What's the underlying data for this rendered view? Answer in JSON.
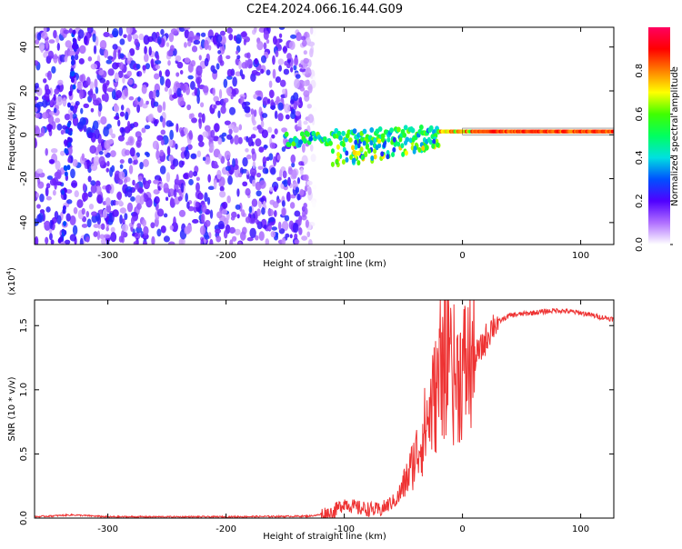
{
  "title": "C2E4.2024.066.16.44.G09",
  "chart_data": [
    {
      "type": "heatmap",
      "xlabel": "Height of straight line (km)",
      "ylabel": "Frequency (Hz)",
      "xlim": [
        -362,
        128
      ],
      "ylim": [
        -50,
        49
      ],
      "xticks": [
        -300,
        -200,
        -100,
        0,
        100
      ],
      "yticks": [
        -40,
        -20,
        0,
        20,
        40
      ],
      "grid": false,
      "colorbar": {
        "label": "Normalized spectral amplitude",
        "range": [
          0,
          1
        ],
        "ticks": [
          "0.0",
          "0.2",
          "0.4",
          "0.6",
          "0.8"
        ],
        "colors": [
          "#ffffff",
          "#b070ff",
          "#5000ff",
          "#0050ff",
          "#00e0e0",
          "#00ff60",
          "#40ff00",
          "#ffff00",
          "#ff8000",
          "#ff0000",
          "#ff0060"
        ]
      },
      "features": {
        "noise_region_x": [
          -362,
          -125
        ],
        "signal_line_frequency_hz": 1.5,
        "signal_start_x": -150
      }
    },
    {
      "type": "line",
      "xlabel": "Height of straight line (km)",
      "ylabel": "SNR (10 * v/v)",
      "multiplier_label": "(x10",
      "multiplier_exp": "4",
      "multiplier_close": ")",
      "xlim": [
        -362,
        128
      ],
      "ylim": [
        0,
        1.7
      ],
      "xticks": [
        -300,
        -200,
        -100,
        0,
        100
      ],
      "yticks": [
        "0.0",
        "0.5",
        "1.0",
        "1.5"
      ],
      "grid": false,
      "series": [
        {
          "color": "#ee3333",
          "points": [
            [
              -362,
              0.01
            ],
            [
              -330,
              0.025
            ],
            [
              -300,
              0.01
            ],
            [
              -200,
              0.01
            ],
            [
              -130,
              0.015
            ],
            [
              -110,
              0.04
            ],
            [
              -100,
              0.12
            ],
            [
              -90,
              0.08
            ],
            [
              -70,
              0.06
            ],
            [
              -55,
              0.15
            ],
            [
              -45,
              0.35
            ],
            [
              -35,
              0.6
            ],
            [
              -25,
              0.9
            ],
            [
              -15,
              1.2
            ],
            [
              -5,
              1.1
            ],
            [
              5,
              1.2
            ],
            [
              15,
              1.3
            ],
            [
              25,
              1.5
            ],
            [
              40,
              1.58
            ],
            [
              60,
              1.6
            ],
            [
              80,
              1.62
            ],
            [
              100,
              1.6
            ],
            [
              115,
              1.57
            ],
            [
              128,
              1.55
            ]
          ]
        }
      ]
    }
  ]
}
